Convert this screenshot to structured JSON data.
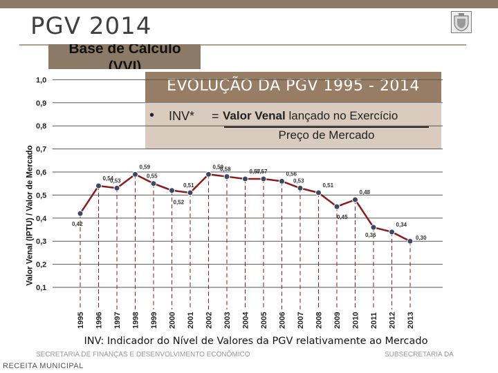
{
  "header": {
    "title": "PGV 2014",
    "subtitle": "Base de Cálculo (VVI)",
    "emblem_icon": "coat-of-arms-icon"
  },
  "chart_title": "EVOLUÇÃO DA PGV 1995 - 2014",
  "definition": {
    "bullet": "•",
    "label": "INV*",
    "equals": "=",
    "numerator_bold": "Valor Venal",
    "numerator_rest": "lançado no Exercício",
    "denominator": "Preço de Mercado"
  },
  "footnote": "INV: Indicador do Nível de Valores da PGV relativamente ao Mercado",
  "footer": {
    "left": "SECRETARIA DE FINANÇAS E DESENVOLVIMENTO ECONÔMICO",
    "right": "SUBSECRETARIA DA",
    "bottom": "RECEITA MUNICIPAL"
  },
  "chart_data": {
    "type": "line",
    "ylabel": "Valor Venal (IPTU) / Valor de Mercado",
    "xlabel": "",
    "ylim": [
      0.05,
      1.0
    ],
    "yticks": [
      "0,1",
      "0,2",
      "0,3",
      "0,4",
      "0,5",
      "0,6",
      "0,7",
      "0,8",
      "0,9",
      "1,0"
    ],
    "categories": [
      "1995",
      "1996",
      "1997",
      "1998",
      "1999",
      "2000",
      "2001",
      "2002",
      "2003",
      "2004",
      "2005",
      "2006",
      "2007",
      "2008",
      "2009",
      "2010",
      "2011",
      "2012",
      "2013"
    ],
    "values": [
      0.42,
      0.54,
      0.53,
      0.59,
      0.55,
      0.52,
      0.51,
      0.59,
      0.58,
      0.57,
      0.57,
      0.56,
      0.53,
      0.51,
      0.45,
      0.48,
      0.36,
      0.34,
      0.3
    ],
    "value_labels": [
      "0,42",
      "0,54",
      "0,53",
      "0,59",
      "0,55",
      "0,52",
      "0,51",
      "0,59",
      "0,58",
      "0,57",
      "0,57",
      "0,56",
      "0,53",
      "0,51",
      "0,45",
      "0,48",
      "0,36",
      "0,34",
      "0,30"
    ],
    "grid": "horizontal",
    "colors": {
      "line": "#8b1a1a",
      "marker": "#3a4a66",
      "grid": "#555555",
      "drop_line": "#8b1a1a"
    }
  }
}
